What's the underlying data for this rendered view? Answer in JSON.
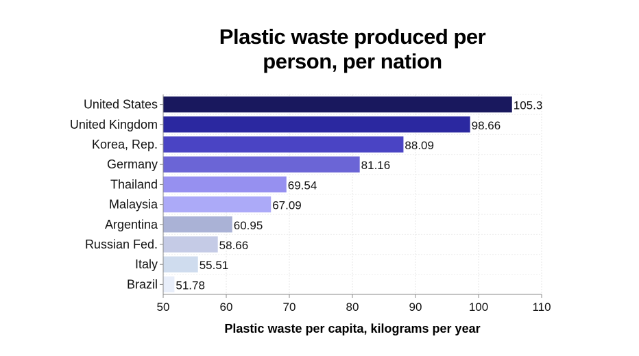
{
  "chart_data": {
    "type": "bar",
    "orientation": "horizontal",
    "title_lines": [
      "Plastic waste produced per",
      "person, per nation"
    ],
    "xlabel": "Plastic waste per capita, kilograms per year",
    "ylabel": "",
    "xlim": [
      50,
      110
    ],
    "xticks": [
      50,
      60,
      70,
      80,
      90,
      100,
      110
    ],
    "grid": true,
    "legend": "none",
    "categories": [
      "United States",
      "United Kingdom",
      "Korea, Rep.",
      "Germany",
      "Thailand",
      "Malaysia",
      "Argentina",
      "Russian Fed.",
      "Italy",
      "Brazil"
    ],
    "values": [
      105.3,
      98.66,
      88.09,
      81.16,
      69.54,
      67.09,
      60.95,
      58.66,
      55.51,
      51.78
    ],
    "value_labels": [
      "105.3",
      "98.66",
      "88.09",
      "81.16",
      "69.54",
      "67.09",
      "60.95",
      "58.66",
      "55.51",
      "51.78"
    ],
    "colors": [
      "#19185e",
      "#2b28a0",
      "#4a44c4",
      "#6b65d6",
      "#9690f0",
      "#acaaf8",
      "#aab2d6",
      "#c5cbe6",
      "#cfdcee",
      "#e8eefa"
    ]
  }
}
